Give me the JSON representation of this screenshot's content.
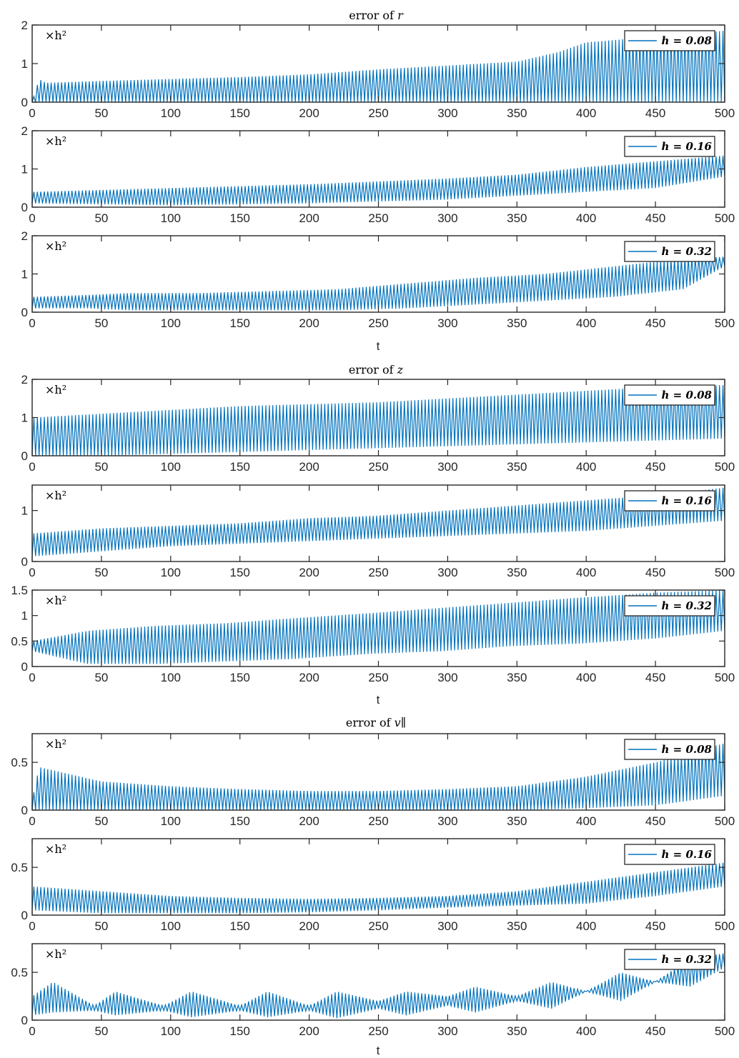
{
  "figure": {
    "groups": [
      {
        "title": "error of r",
        "title_var": "r"
      },
      {
        "title": "error of z",
        "title_var": "z"
      },
      {
        "title": "error of v∥",
        "title_var": "v∥"
      }
    ],
    "xlabel": "t",
    "scale_factor_label": "×h²",
    "line_color": "#0072BD"
  },
  "chart_data": [
    {
      "type": "line",
      "group": "error of r",
      "legend": "h = 0.08",
      "xlim": [
        0,
        500
      ],
      "ylim": [
        0,
        2
      ],
      "xticks": [
        0,
        50,
        100,
        150,
        200,
        250,
        300,
        350,
        400,
        450,
        500
      ],
      "yticks": [
        0,
        1,
        2
      ],
      "envelope": {
        "t": [
          0,
          5,
          10,
          50,
          100,
          150,
          200,
          250,
          300,
          350,
          380,
          400,
          450,
          500
        ],
        "lower": [
          0,
          0,
          0,
          0,
          0,
          0,
          0,
          0,
          0,
          0,
          0,
          0,
          0,
          0
        ],
        "upper": [
          0,
          0.6,
          0.5,
          0.55,
          0.6,
          0.65,
          0.72,
          0.85,
          0.95,
          1.05,
          1.3,
          1.55,
          1.7,
          1.85
        ]
      }
    },
    {
      "type": "line",
      "group": "error of r",
      "legend": "h = 0.16",
      "xlim": [
        0,
        500
      ],
      "ylim": [
        0,
        2
      ],
      "xticks": [
        0,
        50,
        100,
        150,
        200,
        250,
        300,
        350,
        400,
        450,
        500
      ],
      "yticks": [
        0,
        1,
        2
      ],
      "envelope": {
        "t": [
          0,
          100,
          200,
          300,
          350,
          400,
          450,
          500
        ],
        "lower": [
          0.1,
          0.05,
          0.1,
          0.2,
          0.3,
          0.4,
          0.5,
          0.8
        ],
        "upper": [
          0.4,
          0.5,
          0.6,
          0.75,
          0.85,
          1.05,
          1.2,
          1.35
        ]
      }
    },
    {
      "type": "line",
      "group": "error of r",
      "legend": "h = 0.32",
      "xlim": [
        0,
        500
      ],
      "ylim": [
        0,
        2
      ],
      "xticks": [
        0,
        50,
        100,
        150,
        200,
        250,
        300,
        350,
        400,
        450,
        500
      ],
      "yticks": [
        0,
        1,
        2
      ],
      "envelope": {
        "t": [
          0,
          40,
          70,
          120,
          170,
          220,
          270,
          320,
          370,
          420,
          470,
          500
        ],
        "lower": [
          0.1,
          0.1,
          0.05,
          0.05,
          0.05,
          0.05,
          0.1,
          0.2,
          0.3,
          0.4,
          0.6,
          1.2
        ],
        "upper": [
          0.4,
          0.45,
          0.5,
          0.5,
          0.55,
          0.6,
          0.75,
          0.9,
          1.0,
          1.2,
          1.4,
          1.45
        ]
      }
    },
    {
      "type": "line",
      "group": "error of z",
      "legend": "h = 0.08",
      "xlim": [
        0,
        500
      ],
      "ylim": [
        0,
        2
      ],
      "xticks": [
        0,
        50,
        100,
        150,
        200,
        250,
        300,
        350,
        400,
        450,
        500
      ],
      "yticks": [
        0,
        1,
        2
      ],
      "envelope": {
        "t": [
          0,
          50,
          100,
          150,
          200,
          250,
          300,
          350,
          400,
          450,
          500
        ],
        "lower": [
          0,
          0,
          0.05,
          0.1,
          0.15,
          0.2,
          0.25,
          0.3,
          0.35,
          0.4,
          0.45
        ],
        "upper": [
          1.0,
          1.1,
          1.2,
          1.3,
          1.35,
          1.4,
          1.5,
          1.6,
          1.7,
          1.8,
          1.85
        ]
      }
    },
    {
      "type": "line",
      "group": "error of z",
      "legend": "h = 0.16",
      "xlim": [
        0,
        500
      ],
      "ylim": [
        0,
        1.5
      ],
      "xticks": [
        0,
        50,
        100,
        150,
        200,
        250,
        300,
        350,
        400,
        450,
        500
      ],
      "yticks": [
        0,
        1
      ],
      "envelope": {
        "t": [
          0,
          50,
          100,
          150,
          200,
          250,
          300,
          350,
          400,
          450,
          500
        ],
        "lower": [
          0.1,
          0.2,
          0.3,
          0.35,
          0.4,
          0.45,
          0.5,
          0.55,
          0.6,
          0.7,
          0.8
        ],
        "upper": [
          0.55,
          0.65,
          0.7,
          0.75,
          0.85,
          0.9,
          1.0,
          1.1,
          1.2,
          1.3,
          1.45
        ]
      }
    },
    {
      "type": "line",
      "group": "error of z",
      "legend": "h = 0.32",
      "xlim": [
        0,
        500
      ],
      "ylim": [
        0,
        1.5
      ],
      "xticks": [
        0,
        50,
        100,
        150,
        200,
        250,
        300,
        350,
        400,
        450,
        500
      ],
      "yticks": [
        0,
        0.5,
        1,
        1.5
      ],
      "envelope": {
        "t": [
          0,
          40,
          90,
          140,
          190,
          245,
          295,
          345,
          395,
          450,
          500
        ],
        "lower": [
          0.3,
          0.05,
          0.05,
          0.1,
          0.15,
          0.25,
          0.3,
          0.4,
          0.45,
          0.55,
          0.7
        ],
        "upper": [
          0.5,
          0.7,
          0.8,
          0.85,
          0.95,
          1.05,
          1.15,
          1.25,
          1.35,
          1.45,
          1.5
        ]
      }
    },
    {
      "type": "line",
      "group": "error of v∥",
      "legend": "h = 0.08",
      "xlim": [
        0,
        500
      ],
      "ylim": [
        0,
        0.8
      ],
      "xticks": [
        0,
        50,
        100,
        150,
        200,
        250,
        300,
        350,
        400,
        450,
        500
      ],
      "yticks": [
        0,
        0.5
      ],
      "envelope": {
        "t": [
          0,
          5,
          50,
          100,
          150,
          200,
          250,
          300,
          350,
          400,
          450,
          500
        ],
        "lower": [
          0,
          0,
          0,
          0,
          0,
          0,
          0,
          0,
          0,
          0.02,
          0.05,
          0.15
        ],
        "upper": [
          0.1,
          0.45,
          0.3,
          0.25,
          0.22,
          0.2,
          0.2,
          0.22,
          0.25,
          0.35,
          0.5,
          0.7
        ]
      }
    },
    {
      "type": "line",
      "group": "error of v∥",
      "legend": "h = 0.16",
      "xlim": [
        0,
        500
      ],
      "ylim": [
        0,
        0.8
      ],
      "xticks": [
        0,
        50,
        100,
        150,
        200,
        250,
        300,
        350,
        400,
        450,
        500
      ],
      "yticks": [
        0,
        0.5
      ],
      "envelope": {
        "t": [
          0,
          50,
          100,
          150,
          200,
          250,
          300,
          350,
          400,
          450,
          500
        ],
        "lower": [
          0.05,
          0.02,
          0.02,
          0.02,
          0.03,
          0.05,
          0.08,
          0.1,
          0.12,
          0.2,
          0.3
        ],
        "upper": [
          0.3,
          0.25,
          0.2,
          0.18,
          0.17,
          0.18,
          0.2,
          0.25,
          0.35,
          0.45,
          0.55
        ]
      }
    },
    {
      "type": "line",
      "group": "error of v∥",
      "legend": "h = 0.32",
      "xlim": [
        0,
        500
      ],
      "ylim": [
        0,
        0.8
      ],
      "xticks": [
        0,
        50,
        100,
        150,
        200,
        250,
        300,
        350,
        400,
        450,
        500
      ],
      "yticks": [
        0,
        0.5
      ],
      "envelope": {
        "t": [
          0,
          15,
          45,
          60,
          95,
          115,
          150,
          170,
          200,
          220,
          250,
          270,
          300,
          320,
          350,
          375,
          400,
          425,
          450,
          475,
          500
        ],
        "lower": [
          0.05,
          0.08,
          0.1,
          0.05,
          0.1,
          0.03,
          0.1,
          0.03,
          0.1,
          0.02,
          0.12,
          0.05,
          0.15,
          0.08,
          0.2,
          0.12,
          0.3,
          0.2,
          0.4,
          0.35,
          0.55
        ],
        "upper": [
          0.25,
          0.4,
          0.15,
          0.3,
          0.15,
          0.3,
          0.15,
          0.3,
          0.15,
          0.3,
          0.2,
          0.3,
          0.25,
          0.35,
          0.25,
          0.4,
          0.3,
          0.5,
          0.4,
          0.65,
          0.7
        ]
      }
    }
  ]
}
